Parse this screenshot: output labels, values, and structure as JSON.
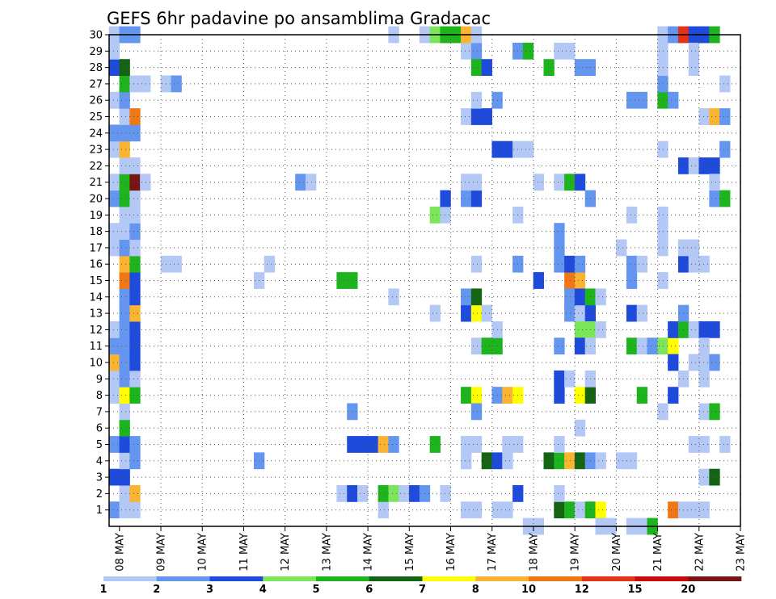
{
  "chart_data": {
    "type": "heatmap",
    "title": "GEFS 6hr padavine po ansamblima Gradacac",
    "xlabel": "",
    "ylabel": "",
    "x_ticks": [
      "08 MAY",
      "09 MAY",
      "10 MAY",
      "11 MAY",
      "12 MAY",
      "13 MAY",
      "14 MAY",
      "15 MAY",
      "16 MAY",
      "17 MAY",
      "18 MAY",
      "19 MAY",
      "20 MAY",
      "21 MAY",
      "22 MAY",
      "23 MAY"
    ],
    "y_ticks": [
      "1",
      "2",
      "3",
      "4",
      "5",
      "6",
      "7",
      "8",
      "9",
      "10",
      "11",
      "12",
      "13",
      "14",
      "15",
      "16",
      "17",
      "18",
      "19",
      "20",
      "21",
      "22",
      "23",
      "24",
      "25",
      "26",
      "27",
      "28",
      "29",
      "30"
    ],
    "xlim": [
      0,
      61
    ],
    "ylim": [
      0,
      30
    ],
    "steps_per_day": 4,
    "grid": true,
    "colorbar": {
      "placement": "bottom",
      "labels": [
        "1",
        "2",
        "3",
        "4",
        "5",
        "6",
        "7",
        "8",
        "10",
        "12",
        "15",
        "20"
      ],
      "colors": [
        "#b4c8f5",
        "#6496f0",
        "#1e4bdc",
        "#7ce65a",
        "#1eb41e",
        "#146414",
        "#ffff00",
        "#fab432",
        "#f07814",
        "#e63214",
        "#c80a0a",
        "#781414"
      ]
    },
    "cells_note": "cells: [time_step_index, member, colorbar_level]",
    "cells": [
      [
        0,
        1,
        2
      ],
      [
        1,
        1,
        1
      ],
      [
        2,
        1,
        1
      ],
      [
        1,
        2,
        1
      ],
      [
        2,
        2,
        8
      ],
      [
        0,
        3,
        3
      ],
      [
        1,
        3,
        3
      ],
      [
        1,
        4,
        1
      ],
      [
        2,
        4,
        2
      ],
      [
        0,
        5,
        2
      ],
      [
        1,
        5,
        3
      ],
      [
        2,
        5,
        2
      ],
      [
        1,
        6,
        5
      ],
      [
        1,
        7,
        1
      ],
      [
        0,
        8,
        1
      ],
      [
        1,
        8,
        7
      ],
      [
        2,
        8,
        5
      ],
      [
        0,
        9,
        1
      ],
      [
        1,
        9,
        2
      ],
      [
        2,
        9,
        1
      ],
      [
        0,
        10,
        8
      ],
      [
        1,
        10,
        2
      ],
      [
        2,
        10,
        3
      ],
      [
        0,
        11,
        2
      ],
      [
        1,
        11,
        2
      ],
      [
        2,
        11,
        3
      ],
      [
        0,
        12,
        1
      ],
      [
        1,
        12,
        2
      ],
      [
        2,
        12,
        3
      ],
      [
        1,
        13,
        2
      ],
      [
        2,
        13,
        8
      ],
      [
        1,
        14,
        2
      ],
      [
        2,
        14,
        3
      ],
      [
        1,
        15,
        9
      ],
      [
        2,
        15,
        3
      ],
      [
        1,
        16,
        8
      ],
      [
        2,
        16,
        5
      ],
      [
        0,
        17,
        1
      ],
      [
        1,
        17,
        2
      ],
      [
        2,
        17,
        1
      ],
      [
        0,
        18,
        1
      ],
      [
        1,
        18,
        1
      ],
      [
        2,
        18,
        2
      ],
      [
        1,
        19,
        1
      ],
      [
        2,
        19,
        1
      ],
      [
        0,
        20,
        2
      ],
      [
        1,
        20,
        5
      ],
      [
        2,
        20,
        1
      ],
      [
        0,
        21,
        1
      ],
      [
        1,
        21,
        5
      ],
      [
        2,
        21,
        12
      ],
      [
        3,
        21,
        1
      ],
      [
        1,
        22,
        1
      ],
      [
        2,
        22,
        1
      ],
      [
        0,
        23,
        1
      ],
      [
        1,
        23,
        8
      ],
      [
        0,
        24,
        2
      ],
      [
        1,
        24,
        2
      ],
      [
        2,
        24,
        2
      ],
      [
        1,
        25,
        1
      ],
      [
        2,
        25,
        9
      ],
      [
        0,
        26,
        1
      ],
      [
        1,
        26,
        2
      ],
      [
        1,
        27,
        5
      ],
      [
        2,
        27,
        1
      ],
      [
        3,
        27,
        1
      ],
      [
        0,
        28,
        3
      ],
      [
        1,
        28,
        6
      ],
      [
        0,
        29,
        1
      ],
      [
        0,
        30,
        1
      ],
      [
        1,
        30,
        2
      ],
      [
        2,
        30,
        2
      ],
      [
        5,
        16,
        1
      ],
      [
        6,
        16,
        1
      ],
      [
        5,
        27,
        1
      ],
      [
        6,
        27,
        2
      ],
      [
        14,
        15,
        1
      ],
      [
        15,
        16,
        1
      ],
      [
        14,
        4,
        2
      ],
      [
        18,
        21,
        2
      ],
      [
        19,
        21,
        1
      ],
      [
        22,
        2,
        1
      ],
      [
        23,
        2,
        3
      ],
      [
        24,
        2,
        1
      ],
      [
        23,
        7,
        2
      ],
      [
        22,
        15,
        5
      ],
      [
        23,
        15,
        5
      ],
      [
        23,
        5,
        3
      ],
      [
        24,
        5,
        3
      ],
      [
        25,
        5,
        3
      ],
      [
        26,
        5,
        8
      ],
      [
        27,
        5,
        2
      ],
      [
        26,
        1,
        1
      ],
      [
        26,
        2,
        5
      ],
      [
        27,
        2,
        4
      ],
      [
        28,
        2,
        1
      ],
      [
        27,
        14,
        1
      ],
      [
        27,
        30,
        1
      ],
      [
        29,
        2,
        3
      ],
      [
        30,
        2,
        2
      ],
      [
        30,
        30,
        1
      ],
      [
        31,
        5,
        5
      ],
      [
        31,
        13,
        1
      ],
      [
        31,
        19,
        4
      ],
      [
        32,
        19,
        1
      ],
      [
        32,
        20,
        3
      ],
      [
        32,
        2,
        1
      ],
      [
        31,
        30,
        4
      ],
      [
        32,
        30,
        5
      ],
      [
        34,
        1,
        1
      ],
      [
        35,
        1,
        1
      ],
      [
        34,
        5,
        1
      ],
      [
        35,
        5,
        1
      ],
      [
        34,
        4,
        1
      ],
      [
        34,
        8,
        5
      ],
      [
        35,
        8,
        7
      ],
      [
        34,
        13,
        3
      ],
      [
        35,
        13,
        7
      ],
      [
        36,
        13,
        1
      ],
      [
        34,
        14,
        2
      ],
      [
        35,
        14,
        6
      ],
      [
        34,
        20,
        2
      ],
      [
        35,
        20,
        3
      ],
      [
        34,
        21,
        1
      ],
      [
        35,
        21,
        1
      ],
      [
        34,
        25,
        1
      ],
      [
        35,
        25,
        3
      ],
      [
        36,
        25,
        3
      ],
      [
        34,
        29,
        1
      ],
      [
        35,
        29,
        2
      ],
      [
        33,
        30,
        5
      ],
      [
        34,
        30,
        8
      ],
      [
        35,
        30,
        1
      ],
      [
        35,
        28,
        5
      ],
      [
        36,
        28,
        3
      ],
      [
        35,
        11,
        1
      ],
      [
        36,
        11,
        5
      ],
      [
        37,
        11,
        5
      ],
      [
        35,
        16,
        1
      ],
      [
        35,
        26,
        1
      ],
      [
        35,
        7,
        2
      ],
      [
        36,
        4,
        6
      ],
      [
        37,
        4,
        3
      ],
      [
        37,
        1,
        1
      ],
      [
        38,
        1,
        1
      ],
      [
        37,
        8,
        2
      ],
      [
        38,
        8,
        8
      ],
      [
        39,
        8,
        7
      ],
      [
        37,
        12,
        1
      ],
      [
        37,
        23,
        3
      ],
      [
        38,
        23,
        3
      ],
      [
        39,
        23,
        1
      ],
      [
        40,
        23,
        1
      ],
      [
        37,
        26,
        2
      ],
      [
        38,
        5,
        1
      ],
      [
        39,
        5,
        1
      ],
      [
        38,
        4,
        1
      ],
      [
        39,
        2,
        3
      ],
      [
        39,
        16,
        2
      ],
      [
        39,
        19,
        1
      ],
      [
        39,
        29,
        2
      ],
      [
        40,
        29,
        5
      ],
      [
        40,
        0,
        1
      ],
      [
        41,
        0,
        1
      ],
      [
        41,
        15,
        3
      ],
      [
        41,
        21,
        1
      ],
      [
        42,
        28,
        5
      ],
      [
        43,
        21,
        1
      ],
      [
        44,
        21,
        5
      ],
      [
        45,
        21,
        3
      ],
      [
        43,
        29,
        1
      ],
      [
        44,
        29,
        1
      ],
      [
        42,
        4,
        6
      ],
      [
        43,
        4,
        5
      ],
      [
        44,
        4,
        8
      ],
      [
        45,
        4,
        6
      ],
      [
        46,
        4,
        2
      ],
      [
        43,
        5,
        1
      ],
      [
        43,
        16,
        2
      ],
      [
        43,
        17,
        2
      ],
      [
        43,
        18,
        2
      ],
      [
        43,
        8,
        3
      ],
      [
        43,
        9,
        3
      ],
      [
        44,
        9,
        1
      ],
      [
        43,
        11,
        2
      ],
      [
        43,
        1,
        6
      ],
      [
        44,
        1,
        5
      ],
      [
        45,
        1,
        1
      ],
      [
        46,
        1,
        5
      ],
      [
        47,
        1,
        7
      ],
      [
        43,
        2,
        1
      ],
      [
        44,
        15,
        9
      ],
      [
        45,
        15,
        8
      ],
      [
        44,
        16,
        3
      ],
      [
        45,
        16,
        2
      ],
      [
        44,
        13,
        2
      ],
      [
        45,
        13,
        1
      ],
      [
        46,
        13,
        3
      ],
      [
        44,
        14,
        2
      ],
      [
        45,
        14,
        3
      ],
      [
        46,
        14,
        5
      ],
      [
        45,
        12,
        4
      ],
      [
        46,
        12,
        4
      ],
      [
        45,
        11,
        3
      ],
      [
        46,
        11,
        1
      ],
      [
        45,
        8,
        7
      ],
      [
        46,
        8,
        6
      ],
      [
        46,
        9,
        1
      ],
      [
        45,
        6,
        1
      ],
      [
        46,
        20,
        2
      ],
      [
        46,
        28,
        2
      ],
      [
        45,
        28,
        2
      ],
      [
        47,
        4,
        1
      ],
      [
        47,
        14,
        1
      ],
      [
        47,
        12,
        1
      ],
      [
        47,
        0,
        1
      ],
      [
        48,
        0,
        1
      ],
      [
        49,
        4,
        1
      ],
      [
        50,
        4,
        1
      ],
      [
        50,
        0,
        1
      ],
      [
        51,
        0,
        1
      ],
      [
        49,
        17,
        1
      ],
      [
        50,
        15,
        2
      ],
      [
        50,
        16,
        2
      ],
      [
        50,
        26,
        2
      ],
      [
        51,
        26,
        2
      ],
      [
        50,
        11,
        5
      ],
      [
        50,
        19,
        1
      ],
      [
        50,
        13,
        3
      ],
      [
        51,
        13,
        1
      ],
      [
        51,
        16,
        1
      ],
      [
        51,
        8,
        5
      ],
      [
        51,
        11,
        1
      ],
      [
        52,
        11,
        2
      ],
      [
        53,
        11,
        4
      ],
      [
        54,
        11,
        7
      ],
      [
        52,
        0,
        5
      ],
      [
        53,
        15,
        1
      ],
      [
        54,
        12,
        3
      ],
      [
        55,
        12,
        5
      ],
      [
        56,
        12,
        1
      ],
      [
        57,
        12,
        3
      ],
      [
        58,
        12,
        3
      ],
      [
        54,
        10,
        3
      ],
      [
        54,
        8,
        3
      ],
      [
        53,
        7,
        1
      ],
      [
        53,
        17,
        1
      ],
      [
        53,
        18,
        1
      ],
      [
        53,
        19,
        1
      ],
      [
        53,
        26,
        5
      ],
      [
        54,
        26,
        2
      ],
      [
        53,
        27,
        2
      ],
      [
        53,
        23,
        1
      ],
      [
        53,
        28,
        1
      ],
      [
        53,
        29,
        1
      ],
      [
        53,
        30,
        1
      ],
      [
        54,
        30,
        2
      ],
      [
        55,
        30,
        10
      ],
      [
        56,
        30,
        3
      ],
      [
        57,
        30,
        3
      ],
      [
        58,
        30,
        5
      ],
      [
        54,
        1,
        9
      ],
      [
        55,
        1,
        1
      ],
      [
        56,
        1,
        1
      ],
      [
        57,
        1,
        1
      ],
      [
        55,
        22,
        3
      ],
      [
        56,
        22,
        1
      ],
      [
        55,
        16,
        3
      ],
      [
        55,
        17,
        1
      ],
      [
        56,
        17,
        1
      ],
      [
        55,
        9,
        1
      ],
      [
        55,
        13,
        2
      ],
      [
        56,
        29,
        1
      ],
      [
        56,
        28,
        1
      ],
      [
        56,
        10,
        1
      ],
      [
        57,
        10,
        1
      ],
      [
        58,
        10,
        2
      ],
      [
        57,
        9,
        1
      ],
      [
        57,
        11,
        1
      ],
      [
        56,
        16,
        1
      ],
      [
        57,
        16,
        1
      ],
      [
        56,
        5,
        1
      ],
      [
        57,
        5,
        1
      ],
      [
        57,
        7,
        1
      ],
      [
        58,
        7,
        5
      ],
      [
        57,
        3,
        1
      ],
      [
        58,
        3,
        6
      ],
      [
        57,
        22,
        3
      ],
      [
        58,
        22,
        3
      ],
      [
        57,
        25,
        1
      ],
      [
        58,
        25,
        8
      ],
      [
        59,
        25,
        2
      ],
      [
        58,
        20,
        2
      ],
      [
        59,
        20,
        5
      ],
      [
        59,
        23,
        2
      ],
      [
        59,
        27,
        1
      ],
      [
        59,
        5,
        1
      ],
      [
        58,
        21,
        1
      ]
    ]
  }
}
